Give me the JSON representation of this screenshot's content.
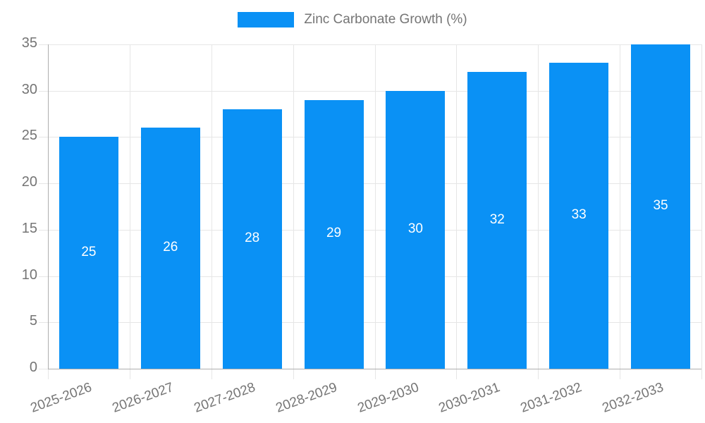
{
  "legend": {
    "label": "Zinc Carbonate Growth (%)",
    "position": "top"
  },
  "chart_data": {
    "type": "bar",
    "title": "Zinc Carbonate Growth (%)",
    "xlabel": "",
    "ylabel": "",
    "categories": [
      "2025-2026",
      "2026-2027",
      "2027-2028",
      "2028-2029",
      "2029-2030",
      "2030-2031",
      "2031-2032",
      "2032-2033"
    ],
    "series": [
      {
        "name": "Zinc Carbonate Growth (%)",
        "values": [
          25,
          26,
          28,
          29,
          30,
          32,
          33,
          35
        ]
      }
    ],
    "value_labels_shown": true,
    "value_label_position": "inside-center",
    "ylim": [
      0,
      35
    ],
    "yticks": [
      0,
      5,
      10,
      15,
      20,
      25,
      30,
      35
    ],
    "grid": true,
    "x_tick_label_rotation_deg": -20,
    "legend_position": "top-center"
  },
  "colors": {
    "bar": "#0A91F5",
    "grid": "#e6e6e6",
    "axis": "#aeaeae",
    "text": "#757575",
    "value_label": "#ffffff",
    "background": "#ffffff"
  }
}
